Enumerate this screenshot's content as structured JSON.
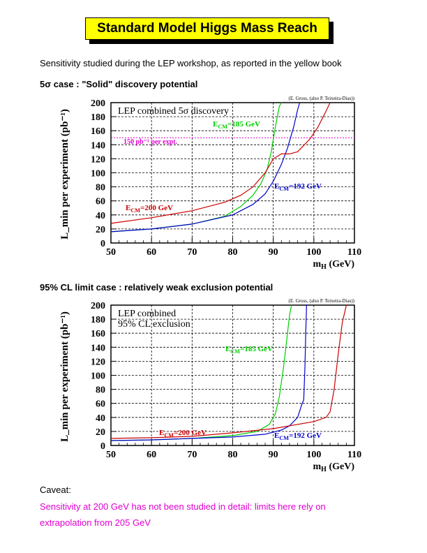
{
  "title": "Standard Model Higgs Mass Reach",
  "intro": "Sensitivity studied during the LEP workshop, as reported in the yellow book",
  "section1": "5σ case : \"Solid\" discovery potential",
  "section2": "95% CL limit case : relatively weak exclusion potential",
  "caveat_label": "Caveat:",
  "caveat_line1": "Sensitivity at 200 GeV has not been studied in detail: limits here rely on",
  "caveat_line2": "extrapolation from 205 GeV",
  "colors": {
    "red": "#cc0000",
    "green": "#00cc00",
    "blue": "#0000cc",
    "magenta": "#e000d0"
  },
  "chart_data": [
    {
      "type": "line",
      "title": "LEP combined 5σ discovery",
      "credit": "(E. Gross, (also P. Teixeira-Dias))",
      "xlabel": "m_H (GeV)",
      "ylabel": "L_min per experiment (pb⁻¹)",
      "xlim": [
        50,
        110
      ],
      "ylim": [
        0,
        200
      ],
      "xticks": [
        50,
        60,
        70,
        80,
        90,
        100,
        110
      ],
      "yticks": [
        0,
        20,
        40,
        60,
        80,
        100,
        120,
        140,
        160,
        180,
        200
      ],
      "grid": true,
      "hline": {
        "y": 150,
        "label": "150 pb⁻¹ per expt."
      },
      "series": [
        {
          "name": "E_CM=185 GeV",
          "color": "green",
          "x": [
            50,
            60,
            70,
            78,
            82,
            85,
            87,
            88.5,
            89.5,
            90.5,
            91.5,
            92
          ],
          "y": [
            16,
            20,
            27,
            38,
            52,
            68,
            85,
            105,
            130,
            165,
            195,
            200
          ]
        },
        {
          "name": "E_CM=192 GeV",
          "color": "blue",
          "x": [
            50,
            60,
            70,
            80,
            85,
            88,
            90,
            92,
            93.5,
            95,
            96,
            96.5
          ],
          "y": [
            16,
            20,
            27,
            40,
            55,
            70,
            88,
            112,
            135,
            165,
            190,
            200
          ]
        },
        {
          "name": "E_CM=200 GeV",
          "color": "red",
          "x": [
            50,
            60,
            70,
            78,
            82,
            85,
            88,
            90,
            92,
            94,
            96,
            99,
            101,
            103,
            104
          ],
          "y": [
            28,
            36,
            46,
            58,
            68,
            80,
            100,
            120,
            127,
            127,
            130,
            148,
            165,
            188,
            200
          ]
        }
      ],
      "series_labels": [
        "E_CM=185 GeV",
        "E_CM=192 GeV",
        "E_CM=200 GeV"
      ]
    },
    {
      "type": "line",
      "title": "LEP combined",
      "title2": "95% CL exclusion",
      "credit": "(E. Gross, (also P. Teixeira-Dias))",
      "xlabel": "m_H (GeV)",
      "ylabel": "L_min per experiment (pb⁻¹)",
      "xlim": [
        50,
        110
      ],
      "ylim": [
        0,
        200
      ],
      "xticks": [
        50,
        60,
        70,
        80,
        90,
        100,
        110
      ],
      "yticks": [
        0,
        20,
        40,
        60,
        80,
        100,
        120,
        140,
        160,
        180,
        200
      ],
      "grid": true,
      "series": [
        {
          "name": "E_CM=185 GeV",
          "color": "green",
          "x": [
            50,
            60,
            70,
            80,
            86,
            89,
            90.5,
            91.5,
            92.5,
            93.3,
            94,
            94.5
          ],
          "y": [
            7,
            8,
            10,
            14,
            20,
            30,
            45,
            70,
            110,
            150,
            185,
            200
          ]
        },
        {
          "name": "E_CM=192 GeV",
          "color": "blue",
          "x": [
            50,
            60,
            70,
            80,
            88,
            92,
            94,
            96,
            97,
            97.5,
            97.8,
            98,
            98.2
          ],
          "y": [
            7,
            8,
            10,
            12,
            16,
            22,
            28,
            40,
            58,
            65,
            110,
            160,
            200
          ]
        },
        {
          "name": "E_CM=200 GeV",
          "color": "red",
          "x": [
            50,
            60,
            70,
            80,
            90,
            100,
            103,
            104,
            105,
            106,
            107,
            108
          ],
          "y": [
            10,
            11,
            13,
            18,
            24,
            34,
            40,
            48,
            80,
            130,
            175,
            200
          ]
        }
      ],
      "series_labels": [
        "E_CM=185 GeV",
        "E_CM=192 GeV",
        "E_CM=200 GeV"
      ]
    }
  ]
}
